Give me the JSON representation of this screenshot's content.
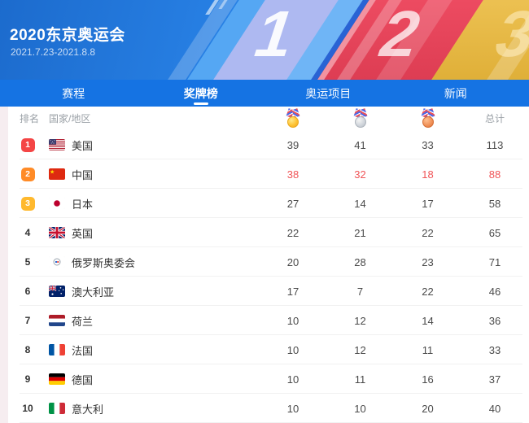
{
  "header": {
    "title": "2020东京奥运会",
    "dates": "2021.7.23-2021.8.8",
    "podium_numbers": [
      "1",
      "2",
      "3"
    ]
  },
  "nav": {
    "tabs": [
      {
        "label": "赛程",
        "active": false
      },
      {
        "label": "奖牌榜",
        "active": true
      },
      {
        "label": "奥运项目",
        "active": false
      },
      {
        "label": "新闻",
        "active": false
      }
    ]
  },
  "table": {
    "columns": {
      "rank_label": "排名",
      "country_label": "国家/地区",
      "total_label": "总计",
      "medal_icons": [
        "gold-medal-icon",
        "silver-medal-icon",
        "bronze-medal-icon"
      ]
    },
    "rows": [
      {
        "rank": 1,
        "country": "美国",
        "flag": "us",
        "gold": 39,
        "silver": 41,
        "bronze": 33,
        "total": 113,
        "highlight": false
      },
      {
        "rank": 2,
        "country": "中国",
        "flag": "cn",
        "gold": 38,
        "silver": 32,
        "bronze": 18,
        "total": 88,
        "highlight": true
      },
      {
        "rank": 3,
        "country": "日本",
        "flag": "jp",
        "gold": 27,
        "silver": 14,
        "bronze": 17,
        "total": 58,
        "highlight": false
      },
      {
        "rank": 4,
        "country": "英国",
        "flag": "gb",
        "gold": 22,
        "silver": 21,
        "bronze": 22,
        "total": 65,
        "highlight": false
      },
      {
        "rank": 5,
        "country": "俄罗斯奥委会",
        "flag": "roc",
        "gold": 20,
        "silver": 28,
        "bronze": 23,
        "total": 71,
        "highlight": false
      },
      {
        "rank": 6,
        "country": "澳大利亚",
        "flag": "au",
        "gold": 17,
        "silver": 7,
        "bronze": 22,
        "total": 46,
        "highlight": false
      },
      {
        "rank": 7,
        "country": "荷兰",
        "flag": "nl",
        "gold": 10,
        "silver": 12,
        "bronze": 14,
        "total": 36,
        "highlight": false
      },
      {
        "rank": 8,
        "country": "法国",
        "flag": "fr",
        "gold": 10,
        "silver": 12,
        "bronze": 11,
        "total": 33,
        "highlight": false
      },
      {
        "rank": 9,
        "country": "德国",
        "flag": "de",
        "gold": 10,
        "silver": 11,
        "bronze": 16,
        "total": 37,
        "highlight": false
      },
      {
        "rank": 10,
        "country": "意大利",
        "flag": "it",
        "gold": 10,
        "silver": 10,
        "bronze": 20,
        "total": 40,
        "highlight": false
      }
    ]
  },
  "colors": {
    "nav_blue": "#1573e3",
    "header_blue_start": "#1c6bcd",
    "header_blue_end": "#3b97f3",
    "highlight_red": "#f05558",
    "rank1_badge": "#f44545",
    "rank2_badge": "#ff8b27",
    "rank3_badge": "#ffb92e"
  }
}
